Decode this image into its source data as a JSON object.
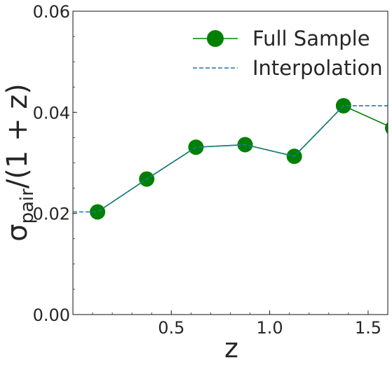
{
  "chart_data": {
    "type": "line",
    "xlabel": "z",
    "ylabel": {
      "base": "σ",
      "sub": "pair",
      "rest": "/(1 + z)"
    },
    "xlim": [
      0.0,
      1.6
    ],
    "ylim": [
      0.0,
      0.06
    ],
    "x_ticks": [
      {
        "value": 0.5,
        "label": "0.5"
      },
      {
        "value": 1.0,
        "label": "1.0"
      },
      {
        "value": 1.5,
        "label": "1.5"
      }
    ],
    "y_ticks": [
      {
        "value": 0.0,
        "label": "0.00"
      },
      {
        "value": 0.02,
        "label": "0.02"
      },
      {
        "value": 0.04,
        "label": "0.04"
      },
      {
        "value": 0.06,
        "label": "0.06"
      }
    ],
    "legend_position": "top-right",
    "grid": false,
    "series": [
      {
        "name": "Full Sample",
        "style": "line-marker",
        "color": "#008000",
        "x": [
          0.125,
          0.375,
          0.625,
          0.875,
          1.125,
          1.375,
          1.625
        ],
        "y": [
          0.0203,
          0.0268,
          0.0331,
          0.0336,
          0.0313,
          0.0413,
          0.0369
        ]
      },
      {
        "name": "Interpolation",
        "style": "dashed",
        "color": "#1f77b4",
        "x": [
          0.0,
          0.125,
          0.375,
          0.625,
          0.875,
          1.125,
          1.375,
          1.6
        ],
        "y": [
          0.0203,
          0.0203,
          0.0268,
          0.0331,
          0.0336,
          0.0313,
          0.0413,
          0.0413
        ]
      }
    ]
  }
}
